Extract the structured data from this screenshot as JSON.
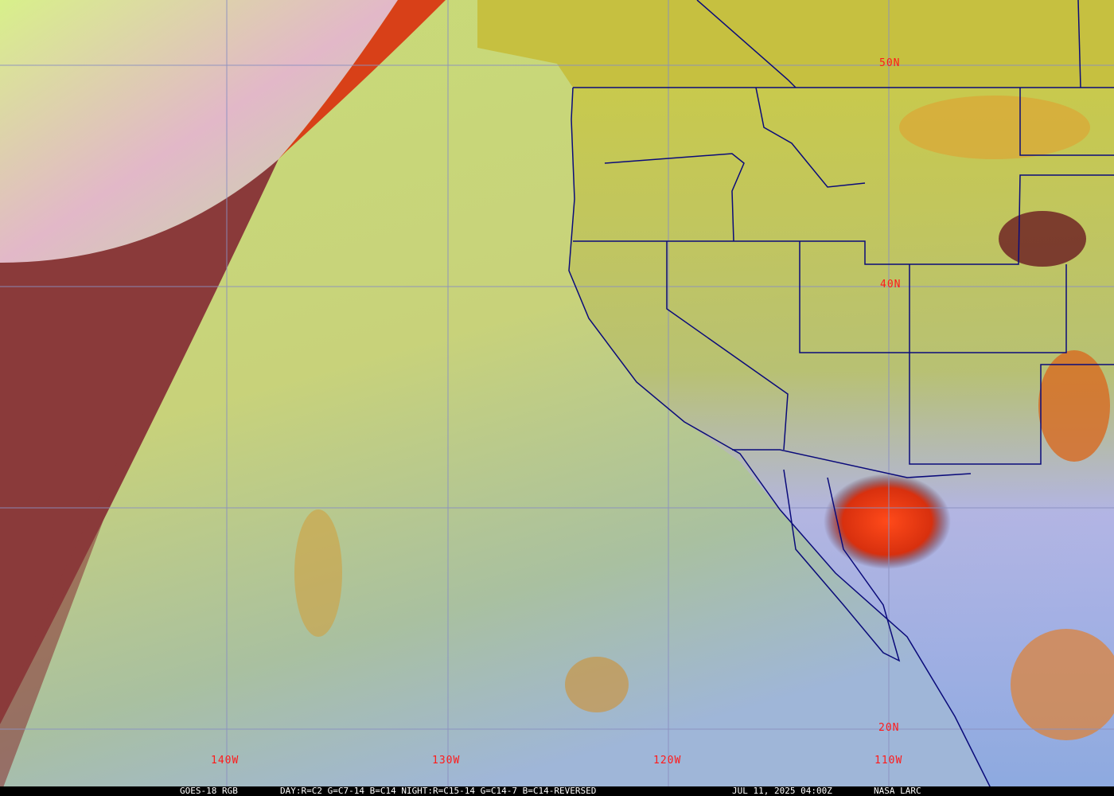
{
  "image": {
    "type": "satellite RGB composite",
    "colors": {
      "grid": "#8a8fc0",
      "borders": "#0a0a7a",
      "labels": "#ff1a1a",
      "caption_bg": "#000000",
      "caption_text": "#ffffff"
    }
  },
  "lat_labels": [
    "50N",
    "40N",
    "20N"
  ],
  "lon_labels": [
    "140W",
    "130W",
    "120W",
    "110W"
  ],
  "caption": {
    "satellite": "GOES-18 RGB",
    "recipe": "DAY:R=C2 G=C7-14 B=C14 NIGHT:R=C15-14 G=C14-7 B=C14-REVERSED",
    "datetime": "JUL 11, 2025 04:00Z",
    "source": "NASA LARC"
  }
}
